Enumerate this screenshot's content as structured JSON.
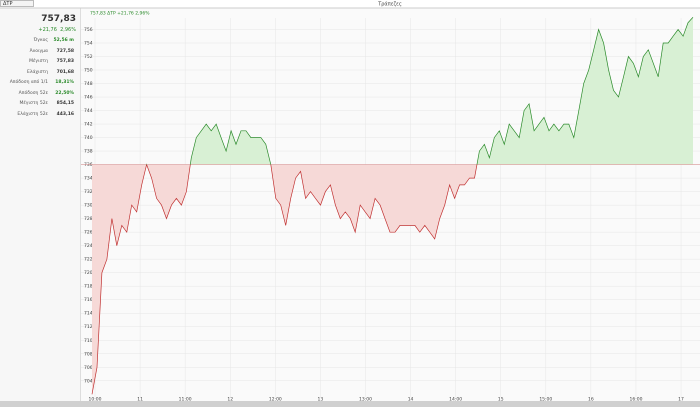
{
  "tab": "ΔΤΡ",
  "stats": {
    "price": "757,83",
    "change": "+21,76",
    "change_pct": "2,96%",
    "rows": [
      {
        "label": "Όγκος",
        "value": "52,56 m",
        "positive": true
      },
      {
        "label": "Άνοιγμα",
        "value": "727,58",
        "positive": false
      },
      {
        "label": "Μέγιστη",
        "value": "757,83",
        "positive": false
      },
      {
        "label": "Ελάχιστη",
        "value": "701,68",
        "positive": false
      },
      {
        "label": "Απόδοση από 1/1",
        "value": "18,31%",
        "positive": true
      },
      {
        "label": "Απόδοση 52ε",
        "value": "22,50%",
        "positive": true
      },
      {
        "label": "Μέγιστη 52ε",
        "value": "854,15",
        "positive": false
      },
      {
        "label": "Ελάχιστη 52ε",
        "value": "443,16",
        "positive": false
      }
    ]
  },
  "chart_data": {
    "type": "line",
    "title": "Τράπεζες",
    "header": "757,83 ΔΤΡ +21,76 2,96%",
    "baseline": 736,
    "up_color": "#2a8a2a",
    "down_color": "#c03030",
    "up_fill": "#d8f0d4",
    "down_fill": "#f6d9d7",
    "ylim": [
      701.6,
      757.7
    ],
    "yticks": [
      704,
      706,
      708,
      710,
      712,
      714,
      716,
      718,
      720,
      722,
      724,
      726,
      728,
      730,
      732,
      734,
      736,
      738,
      740,
      742,
      744,
      746,
      748,
      750,
      752,
      754,
      756
    ],
    "xtick_labels": [
      "10:00",
      "11",
      "11:00",
      "12",
      "12:00",
      "13",
      "13:00",
      "14",
      "14:00",
      "15",
      "15:00",
      "16",
      "16:00",
      "17"
    ],
    "values": [
      702,
      706,
      720,
      722,
      728,
      724,
      727,
      726,
      730,
      729,
      733,
      736,
      734,
      731,
      730,
      728,
      730,
      731,
      730,
      732,
      737,
      740,
      741,
      742,
      741,
      742,
      740,
      738,
      741,
      739,
      741,
      741,
      740,
      740,
      740,
      739,
      736,
      731,
      730,
      727,
      731,
      734,
      735,
      731,
      732,
      731,
      730,
      732,
      733,
      730,
      728,
      729,
      728,
      726,
      730,
      729,
      728,
      731,
      730,
      728,
      726,
      726,
      727,
      727,
      727,
      727,
      726,
      727,
      726,
      725,
      728,
      730,
      733,
      731,
      733,
      733,
      734,
      734,
      738,
      739,
      737,
      740,
      741,
      739,
      742,
      741,
      740,
      744,
      745,
      741,
      742,
      743,
      741,
      742,
      741,
      742,
      742,
      740,
      744,
      748,
      750,
      753,
      756,
      754,
      750,
      747,
      746,
      749,
      752,
      751,
      749,
      752,
      753,
      751,
      749,
      754,
      754,
      755,
      756,
      755,
      757,
      757.8
    ]
  }
}
